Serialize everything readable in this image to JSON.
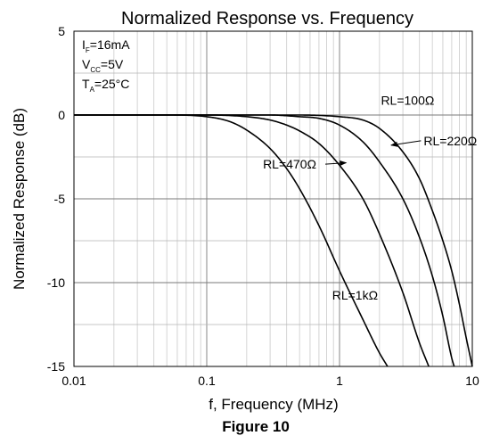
{
  "chart_data": {
    "type": "line",
    "title": "Normalized Response vs. Frequency",
    "xlabel": "f, Frequency (MHz)",
    "ylabel": "Normalized Response (dB)",
    "x_scale": "log",
    "xlim": [
      0.01,
      10
    ],
    "ylim": [
      -15,
      5
    ],
    "x_ticks": [
      {
        "value": 0.01,
        "label": "0.01"
      },
      {
        "value": 0.1,
        "label": "0.1"
      },
      {
        "value": 1,
        "label": "1"
      },
      {
        "value": 10,
        "label": "10"
      }
    ],
    "y_ticks": [
      {
        "value": 5,
        "label": "5"
      },
      {
        "value": 0,
        "label": "0"
      },
      {
        "value": -5,
        "label": "-5"
      },
      {
        "value": -10,
        "label": "-10"
      },
      {
        "value": -15,
        "label": "-15"
      }
    ],
    "grid": true,
    "conditions": [
      {
        "main": "I",
        "sub": "F",
        "rest": "=16mA"
      },
      {
        "main": "V",
        "sub": "CC",
        "rest": "=5V"
      },
      {
        "main": "T",
        "sub": "A",
        "rest": "=25°C"
      }
    ],
    "series": [
      {
        "name": "RL=100Ω",
        "points": [
          [
            0.01,
            0
          ],
          [
            0.1,
            0
          ],
          [
            0.5,
            0
          ],
          [
            1.0,
            -0.1
          ],
          [
            1.5,
            -0.3
          ],
          [
            2,
            -0.8
          ],
          [
            3,
            -2.2
          ],
          [
            4,
            -3.8
          ],
          [
            5,
            -5.7
          ],
          [
            6,
            -7.5
          ],
          [
            7,
            -9.3
          ],
          [
            8,
            -11.3
          ],
          [
            9,
            -13.3
          ],
          [
            10,
            -15
          ]
        ]
      },
      {
        "name": "RL=220Ω",
        "points": [
          [
            0.01,
            0
          ],
          [
            0.1,
            0
          ],
          [
            0.3,
            0
          ],
          [
            0.5,
            -0.1
          ],
          [
            0.7,
            -0.2
          ],
          [
            1,
            -0.6
          ],
          [
            1.5,
            -1.6
          ],
          [
            2,
            -2.8
          ],
          [
            3,
            -5.0
          ],
          [
            4,
            -7.3
          ],
          [
            5,
            -9.6
          ],
          [
            6,
            -12.0
          ],
          [
            7,
            -14.5
          ],
          [
            7.3,
            -15
          ]
        ]
      },
      {
        "name": "RL=470Ω",
        "points": [
          [
            0.01,
            0
          ],
          [
            0.1,
            0
          ],
          [
            0.2,
            -0.1
          ],
          [
            0.3,
            -0.3
          ],
          [
            0.4,
            -0.6
          ],
          [
            0.5,
            -0.95
          ],
          [
            0.7,
            -1.7
          ],
          [
            1,
            -3.0
          ],
          [
            1.5,
            -5.0
          ],
          [
            2,
            -7.1
          ],
          [
            3,
            -10.6
          ],
          [
            4,
            -13.6
          ],
          [
            4.7,
            -15
          ]
        ]
      },
      {
        "name": "RL=1kΩ",
        "points": [
          [
            0.01,
            0
          ],
          [
            0.05,
            0
          ],
          [
            0.1,
            -0.1
          ],
          [
            0.15,
            -0.4
          ],
          [
            0.2,
            -0.9
          ],
          [
            0.3,
            -2.0
          ],
          [
            0.4,
            -3.2
          ],
          [
            0.5,
            -4.4
          ],
          [
            0.7,
            -6.6
          ],
          [
            1,
            -9.3
          ],
          [
            1.5,
            -12.2
          ],
          [
            2,
            -14.2
          ],
          [
            2.3,
            -15
          ]
        ]
      }
    ],
    "labels": [
      {
        "series": "RL=100Ω",
        "x": 2.05,
        "y": 0.6,
        "anchor": "start",
        "arrow": false
      },
      {
        "series": "RL=220Ω",
        "x": 4.3,
        "y": -1.8,
        "anchor": "start",
        "arrow": true,
        "arrow_to": [
          2.45,
          -1.8
        ]
      },
      {
        "series": "RL=470Ω",
        "x": 0.265,
        "y": -3.2,
        "anchor": "start",
        "arrow": true,
        "arrow_to": [
          1.12,
          -2.85
        ]
      },
      {
        "series": "RL=1kΩ",
        "x": 0.88,
        "y": -11.0,
        "anchor": "start",
        "arrow": false
      }
    ],
    "caption": "Figure 10"
  }
}
